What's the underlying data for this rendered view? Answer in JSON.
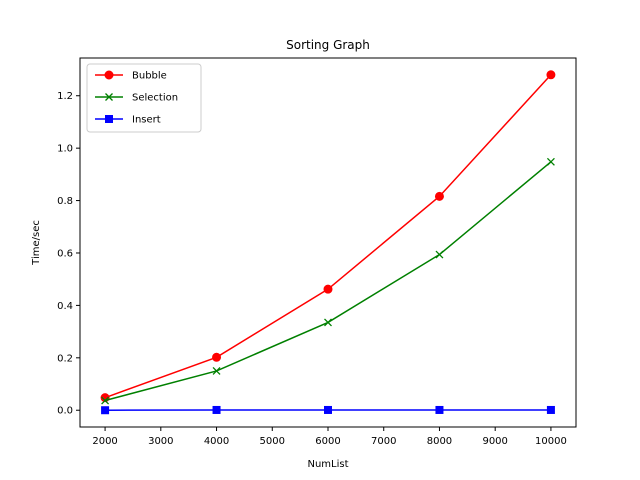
{
  "chart_data": {
    "type": "line",
    "title": "Sorting Graph",
    "xlabel": "NumList",
    "ylabel": "Time/sec",
    "xlim": [
      1550,
      10450
    ],
    "ylim": [
      -0.064,
      1.344
    ],
    "xticks": [
      2000,
      3000,
      4000,
      5000,
      6000,
      7000,
      8000,
      9000,
      10000
    ],
    "yticks": [
      0.0,
      0.2,
      0.4,
      0.6,
      0.8,
      1.0,
      1.2
    ],
    "x": [
      2000,
      4000,
      6000,
      8000,
      10000
    ],
    "grid": false,
    "legend_position": "upper-left",
    "series": [
      {
        "name": "Bubble",
        "color": "#ff0000",
        "marker": "circle",
        "values": [
          0.048,
          0.202,
          0.462,
          0.816,
          1.28
        ]
      },
      {
        "name": "Selection",
        "color": "#008000",
        "marker": "x",
        "values": [
          0.037,
          0.15,
          0.335,
          0.594,
          0.948
        ]
      },
      {
        "name": "Insert",
        "color": "#0000ff",
        "marker": "square",
        "values": [
          0.0,
          0.001,
          0.001,
          0.001,
          0.001
        ]
      }
    ]
  }
}
